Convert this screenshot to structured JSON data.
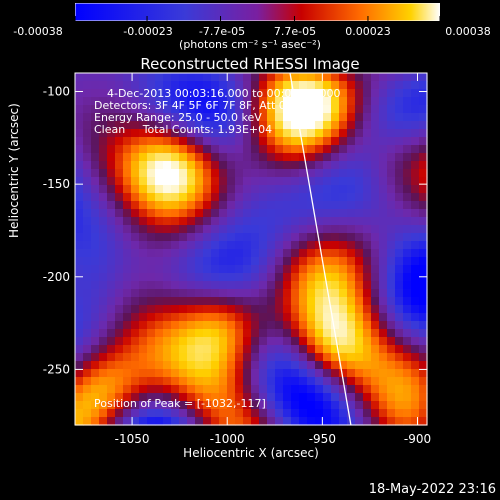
{
  "colorbar": {
    "units": "(photons cm⁻² s⁻¹ asec⁻²)",
    "tick_labels": [
      "-0.00038",
      "-0.00023",
      "-7.7e-05",
      "7.7e-05",
      "0.00023",
      "0.00038"
    ],
    "range": [
      -0.00038,
      0.00038
    ]
  },
  "chart_data": {
    "type": "heatmap",
    "title": "Reconstructed RHESSI Image",
    "xlabel": "Heliocentric X (arcsec)",
    "ylabel": "Heliocentric Y (arcsec)",
    "xlim": [
      -1080,
      -895
    ],
    "ylim": [
      -280,
      -90
    ],
    "xticks": [
      -1050,
      -1000,
      -950,
      -900
    ],
    "yticks": [
      -100,
      -150,
      -200,
      -250
    ],
    "xtick_labels": [
      "-1050",
      "-1000",
      "-950",
      "-900"
    ],
    "ytick_labels": [
      "-100",
      "-150",
      "-200",
      "-250"
    ],
    "colormap": "hot-blue (negative blue/purple, positive red/orange/yellow/white)",
    "limb_line": {
      "x": [
        -967,
        -935
      ],
      "y": [
        -90,
        -280
      ]
    },
    "peak_marker": {
      "x": -1032,
      "y": -117
    },
    "hot_regions": [
      {
        "x": -1000,
        "y": -225,
        "level": "high"
      },
      {
        "x": -1028,
        "y": -140,
        "level": "high"
      },
      {
        "x": -945,
        "y": -240,
        "level": "high"
      },
      {
        "x": -960,
        "y": -105,
        "level": "medium"
      },
      {
        "x": -1065,
        "y": -262,
        "level": "high"
      },
      {
        "x": -912,
        "y": -135,
        "level": "medium"
      }
    ],
    "annotations": [
      "  4-Dec-2013 00:03:16.000 to 00:09:16.000",
      "Detectors: 3F 4F 5F 6F 7F 8F, Att 0",
      "Energy Range: 25.0 - 50.0 keV",
      "Clean     Total Counts: 1.93E+04",
      "Position of Peak = [-1032,-117]"
    ]
  },
  "footer": {
    "timestamp": "18-May-2022 23:16"
  },
  "colors": {
    "background": "#000000",
    "foreground": "#ffffff"
  }
}
